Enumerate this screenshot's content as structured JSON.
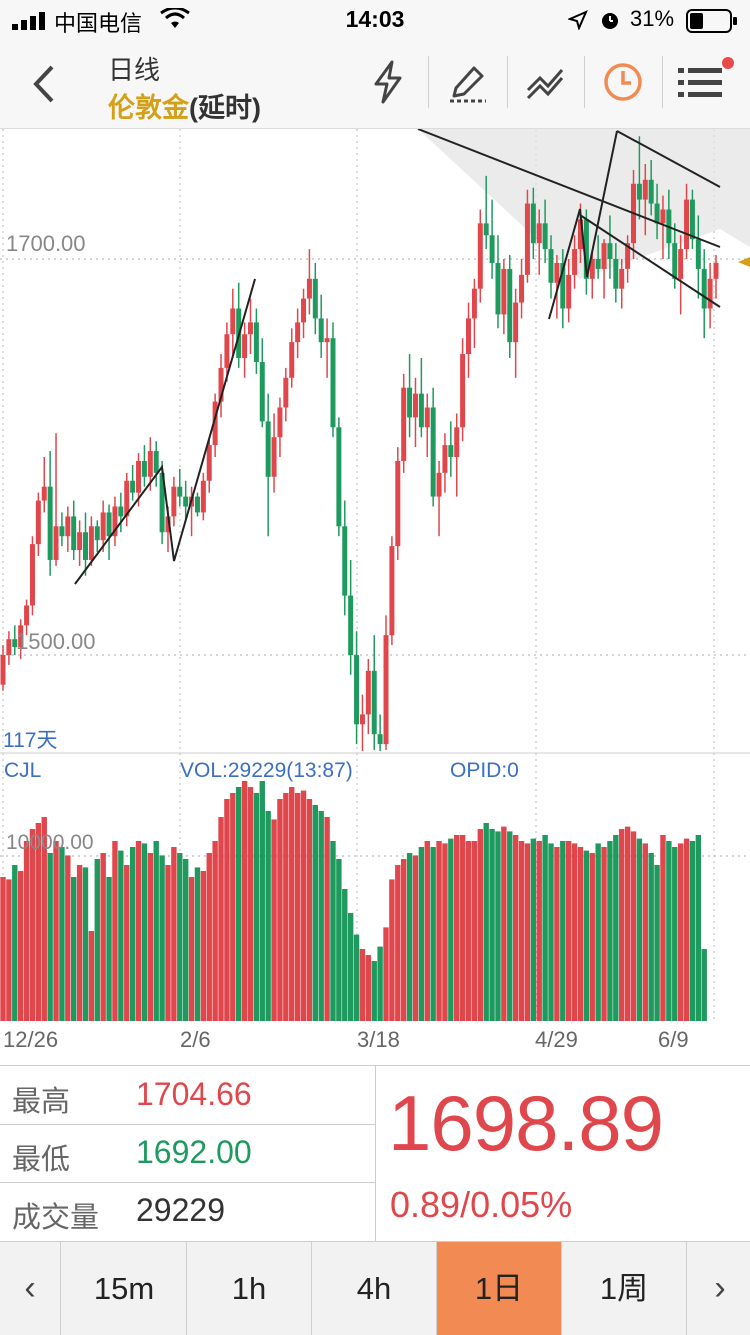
{
  "status_bar": {
    "carrier": "中国电信",
    "time": "14:03",
    "battery_percent": "31%"
  },
  "header": {
    "period": "日线",
    "symbol": "伦敦金",
    "delay": "(延时)",
    "tools": [
      "lightning-icon",
      "highlighter-icon",
      "trendline-icon",
      "clock-icon",
      "menu-icon"
    ],
    "accent_color": "#f28a54"
  },
  "chart": {
    "price_labels": [
      "1700.00",
      "1500.00"
    ],
    "days_label": "117天",
    "indicator_name": "CJL",
    "vol_text": "VOL:29229(13:87)",
    "opid_text": "OPID:0",
    "vol_axis_label": "10000.00",
    "date_labels": [
      "12/26",
      "2/6",
      "3/18",
      "4/29",
      "6/9"
    ]
  },
  "chart_data": {
    "type": "candlestick",
    "up_color": "#e0474c",
    "down_color": "#1f9a5f",
    "x_labels": [
      "12/26",
      "2/6",
      "3/18",
      "4/29",
      "6/9"
    ],
    "price_ticks": [
      1700,
      1500
    ],
    "volume_tick": 10000,
    "ohlc": [
      [
        1485,
        1505,
        1482,
        1500
      ],
      [
        1500,
        1512,
        1495,
        1508
      ],
      [
        1508,
        1515,
        1500,
        1504
      ],
      [
        1504,
        1518,
        1498,
        1515
      ],
      [
        1515,
        1528,
        1510,
        1525
      ],
      [
        1525,
        1560,
        1520,
        1556
      ],
      [
        1556,
        1582,
        1550,
        1578
      ],
      [
        1578,
        1600,
        1572,
        1585
      ],
      [
        1585,
        1603,
        1540,
        1548
      ],
      [
        1548,
        1612,
        1545,
        1565
      ],
      [
        1565,
        1572,
        1555,
        1560
      ],
      [
        1560,
        1575,
        1552,
        1570
      ],
      [
        1570,
        1578,
        1548,
        1553
      ],
      [
        1553,
        1568,
        1545,
        1562
      ],
      [
        1562,
        1572,
        1540,
        1548
      ],
      [
        1548,
        1570,
        1545,
        1565
      ],
      [
        1565,
        1568,
        1552,
        1558
      ],
      [
        1558,
        1578,
        1552,
        1572
      ],
      [
        1572,
        1576,
        1548,
        1560
      ],
      [
        1560,
        1580,
        1555,
        1575
      ],
      [
        1575,
        1582,
        1562,
        1570
      ],
      [
        1570,
        1592,
        1565,
        1588
      ],
      [
        1588,
        1596,
        1578,
        1582
      ],
      [
        1582,
        1602,
        1575,
        1598
      ],
      [
        1598,
        1606,
        1585,
        1590
      ],
      [
        1590,
        1610,
        1583,
        1603
      ],
      [
        1603,
        1608,
        1585,
        1592
      ],
      [
        1592,
        1598,
        1556,
        1562
      ],
      [
        1562,
        1575,
        1552,
        1570
      ],
      [
        1570,
        1590,
        1565,
        1585
      ],
      [
        1585,
        1594,
        1575,
        1580
      ],
      [
        1580,
        1588,
        1568,
        1575
      ],
      [
        1575,
        1585,
        1560,
        1580
      ],
      [
        1580,
        1582,
        1570,
        1572
      ],
      [
        1572,
        1592,
        1568,
        1588
      ],
      [
        1588,
        1610,
        1582,
        1606
      ],
      [
        1606,
        1632,
        1600,
        1628
      ],
      [
        1628,
        1652,
        1620,
        1645
      ],
      [
        1645,
        1668,
        1638,
        1662
      ],
      [
        1662,
        1685,
        1650,
        1675
      ],
      [
        1675,
        1688,
        1645,
        1650
      ],
      [
        1650,
        1668,
        1640,
        1662
      ],
      [
        1662,
        1680,
        1652,
        1668
      ],
      [
        1668,
        1675,
        1642,
        1648
      ],
      [
        1648,
        1660,
        1615,
        1618
      ],
      [
        1618,
        1632,
        1560,
        1590
      ],
      [
        1590,
        1622,
        1582,
        1610
      ],
      [
        1610,
        1630,
        1600,
        1625
      ],
      [
        1625,
        1645,
        1618,
        1640
      ],
      [
        1640,
        1665,
        1635,
        1658
      ],
      [
        1658,
        1675,
        1650,
        1668
      ],
      [
        1668,
        1685,
        1660,
        1680
      ],
      [
        1680,
        1705,
        1672,
        1690
      ],
      [
        1690,
        1698,
        1662,
        1670
      ],
      [
        1670,
        1682,
        1650,
        1658
      ],
      [
        1658,
        1670,
        1640,
        1660
      ],
      [
        1660,
        1668,
        1610,
        1615
      ],
      [
        1615,
        1620,
        1560,
        1565
      ],
      [
        1565,
        1578,
        1520,
        1530
      ],
      [
        1530,
        1548,
        1490,
        1500
      ],
      [
        1500,
        1512,
        1455,
        1465
      ],
      [
        1465,
        1480,
        1450,
        1470
      ],
      [
        1470,
        1498,
        1460,
        1492
      ],
      [
        1492,
        1510,
        1452,
        1460
      ],
      [
        1460,
        1470,
        1450,
        1455
      ],
      [
        1455,
        1520,
        1452,
        1510
      ],
      [
        1510,
        1560,
        1505,
        1555
      ],
      [
        1555,
        1605,
        1548,
        1598
      ],
      [
        1598,
        1642,
        1592,
        1635
      ],
      [
        1635,
        1652,
        1610,
        1620
      ],
      [
        1620,
        1640,
        1605,
        1632
      ],
      [
        1632,
        1650,
        1610,
        1615
      ],
      [
        1615,
        1632,
        1600,
        1625
      ],
      [
        1625,
        1635,
        1575,
        1580
      ],
      [
        1580,
        1598,
        1560,
        1592
      ],
      [
        1592,
        1612,
        1582,
        1606
      ],
      [
        1606,
        1618,
        1590,
        1600
      ],
      [
        1600,
        1622,
        1580,
        1615
      ],
      [
        1615,
        1660,
        1608,
        1652
      ],
      [
        1652,
        1678,
        1640,
        1670
      ],
      [
        1670,
        1690,
        1655,
        1685
      ],
      [
        1685,
        1725,
        1678,
        1718
      ],
      [
        1718,
        1742,
        1705,
        1712
      ],
      [
        1712,
        1730,
        1690,
        1698
      ],
      [
        1698,
        1712,
        1665,
        1672
      ],
      [
        1672,
        1700,
        1662,
        1695
      ],
      [
        1695,
        1702,
        1650,
        1658
      ],
      [
        1658,
        1685,
        1640,
        1678
      ],
      [
        1678,
        1700,
        1670,
        1692
      ],
      [
        1692,
        1735,
        1688,
        1728
      ],
      [
        1728,
        1736,
        1700,
        1708
      ],
      [
        1708,
        1725,
        1692,
        1718
      ],
      [
        1718,
        1730,
        1698,
        1705
      ],
      [
        1705,
        1712,
        1680,
        1688
      ],
      [
        1688,
        1702,
        1670,
        1698
      ],
      [
        1698,
        1705,
        1665,
        1675
      ],
      [
        1675,
        1700,
        1668,
        1692
      ],
      [
        1692,
        1712,
        1685,
        1705
      ],
      [
        1705,
        1728,
        1698,
        1720
      ],
      [
        1720,
        1725,
        1682,
        1690
      ],
      [
        1690,
        1705,
        1680,
        1700
      ],
      [
        1700,
        1712,
        1690,
        1695
      ],
      [
        1695,
        1710,
        1680,
        1708
      ],
      [
        1708,
        1722,
        1690,
        1700
      ],
      [
        1700,
        1708,
        1678,
        1685
      ],
      [
        1685,
        1700,
        1675,
        1695
      ],
      [
        1695,
        1712,
        1688,
        1708
      ],
      [
        1708,
        1745,
        1700,
        1738
      ],
      [
        1738,
        1762,
        1720,
        1730
      ],
      [
        1730,
        1748,
        1712,
        1740
      ],
      [
        1740,
        1750,
        1722,
        1728
      ],
      [
        1728,
        1738,
        1710,
        1718
      ],
      [
        1718,
        1732,
        1700,
        1725
      ],
      [
        1725,
        1735,
        1700,
        1708
      ],
      [
        1708,
        1718,
        1685,
        1690
      ],
      [
        1690,
        1712,
        1672,
        1705
      ],
      [
        1705,
        1738,
        1700,
        1730
      ],
      [
        1730,
        1735,
        1705,
        1710
      ],
      [
        1710,
        1722,
        1680,
        1695
      ],
      [
        1695,
        1705,
        1660,
        1675
      ],
      [
        1675,
        1698,
        1665,
        1690
      ],
      [
        1690,
        1702,
        1680,
        1698
      ]
    ],
    "volume": [
      120,
      118,
      130,
      125,
      150,
      160,
      165,
      170,
      140,
      150,
      145,
      138,
      120,
      130,
      128,
      75,
      135,
      140,
      120,
      150,
      142,
      130,
      145,
      150,
      148,
      140,
      150,
      138,
      130,
      145,
      140,
      135,
      120,
      128,
      125,
      140,
      150,
      170,
      185,
      190,
      195,
      200,
      195,
      190,
      200,
      175,
      168,
      185,
      190,
      195,
      190,
      192,
      185,
      180,
      175,
      170,
      150,
      135,
      110,
      90,
      72,
      60,
      55,
      50,
      62,
      78,
      118,
      130,
      135,
      140,
      138,
      145,
      150,
      145,
      150,
      148,
      152,
      155,
      155,
      150,
      150,
      160,
      165,
      160,
      158,
      162,
      158,
      155,
      150,
      148,
      152,
      150,
      155,
      148,
      145,
      150,
      150,
      148,
      145,
      142,
      140,
      148,
      145,
      150,
      155,
      160,
      162,
      158,
      152,
      148,
      140,
      130,
      155,
      150,
      145,
      148,
      152,
      150,
      155,
      60
    ]
  },
  "info": {
    "high_label": "最高",
    "high_value": "1704.66",
    "low_label": "最低",
    "low_value": "1692.00",
    "volume_label": "成交量",
    "volume_value": "29229",
    "last_price": "1698.89",
    "change": "0.89/0.05%"
  },
  "tabs": {
    "prev": "‹",
    "next": "›",
    "items": [
      "15m",
      "1h",
      "4h",
      "1日",
      "1周"
    ],
    "active_index": 3
  }
}
